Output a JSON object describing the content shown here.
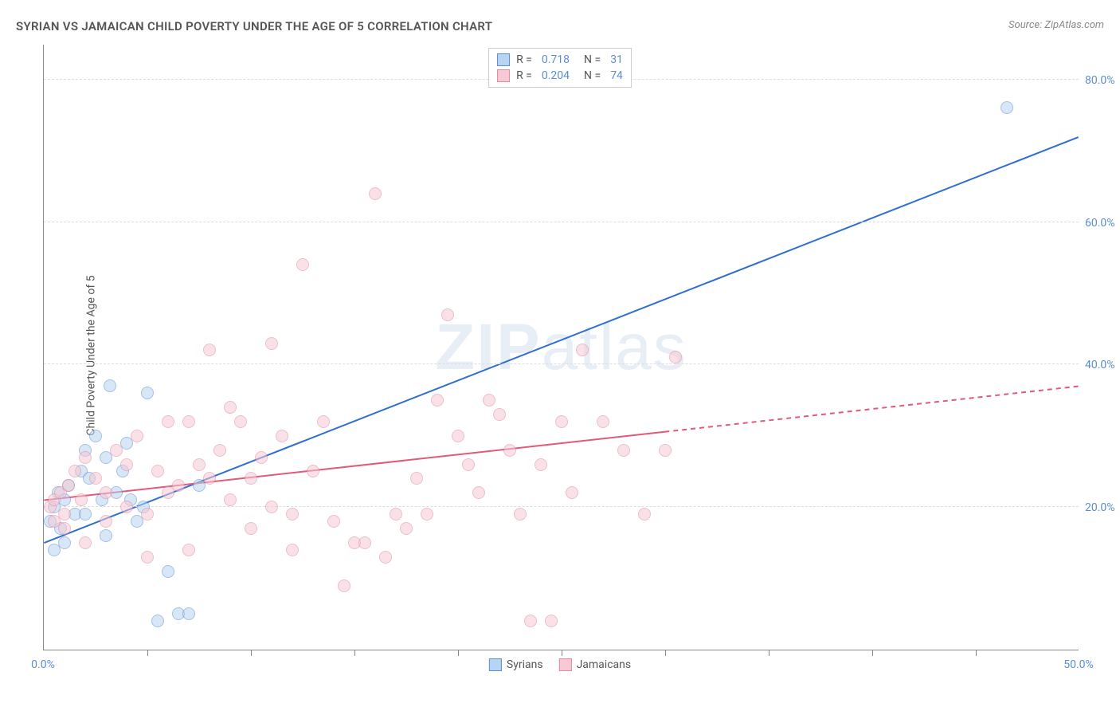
{
  "title": "SYRIAN VS JAMAICAN CHILD POVERTY UNDER THE AGE OF 5 CORRELATION CHART",
  "source": "Source: ZipAtlas.com",
  "ylabel": "Child Poverty Under the Age of 5",
  "watermark_part1": "ZIP",
  "watermark_part2": "atlas",
  "chart": {
    "type": "scatter",
    "xlim": [
      0,
      50
    ],
    "ylim": [
      0,
      85
    ],
    "xticks": [
      0,
      50
    ],
    "xtick_labels": [
      "0.0%",
      "50.0%"
    ],
    "xtick_marks": [
      5,
      10,
      15,
      20,
      25,
      30,
      35,
      40,
      45
    ],
    "yticks": [
      20,
      40,
      60,
      80
    ],
    "ytick_labels": [
      "20.0%",
      "40.0%",
      "60.0%",
      "80.0%"
    ],
    "background_color": "#ffffff",
    "grid_color": "#dddddd",
    "axis_color": "#888888",
    "tick_label_color": "#5b8dd6",
    "point_radius": 8,
    "point_opacity": 0.55,
    "series": [
      {
        "name": "Syrians",
        "color_fill": "#b8d4f0",
        "color_stroke": "#5b8dd6",
        "R": "0.718",
        "N": "31",
        "trend": {
          "x1": 0,
          "y1": 15,
          "x2": 50,
          "y2": 72,
          "solid_until": 50,
          "color": "#2e6fd1",
          "width": 2
        },
        "points": [
          [
            0.3,
            18
          ],
          [
            0.5,
            20
          ],
          [
            0.7,
            22
          ],
          [
            0.8,
            17
          ],
          [
            1.0,
            21
          ],
          [
            1.2,
            23
          ],
          [
            1.5,
            19
          ],
          [
            1.8,
            25
          ],
          [
            2.0,
            28
          ],
          [
            2.2,
            24
          ],
          [
            2.5,
            30
          ],
          [
            3.0,
            27
          ],
          [
            3.2,
            37
          ],
          [
            3.5,
            22
          ],
          [
            4.0,
            29
          ],
          [
            4.2,
            21
          ],
          [
            4.5,
            18
          ],
          [
            4.8,
            20
          ],
          [
            5.0,
            36
          ],
          [
            5.5,
            4
          ],
          [
            6.0,
            11
          ],
          [
            6.5,
            5
          ],
          [
            7.0,
            5
          ],
          [
            7.5,
            23
          ],
          [
            3.0,
            16
          ],
          [
            1.0,
            15
          ],
          [
            0.5,
            14
          ],
          [
            2.8,
            21
          ],
          [
            3.8,
            25
          ],
          [
            2.0,
            19
          ],
          [
            46.5,
            76
          ]
        ]
      },
      {
        "name": "Jamaicans",
        "color_fill": "#f6c9d4",
        "color_stroke": "#e08aa0",
        "R": "0.204",
        "N": "74",
        "trend": {
          "x1": 0,
          "y1": 21,
          "x2": 50,
          "y2": 37,
          "solid_until": 30,
          "color": "#e05a7a",
          "width": 2
        },
        "points": [
          [
            0.3,
            20
          ],
          [
            0.5,
            21
          ],
          [
            0.8,
            22
          ],
          [
            1.0,
            19
          ],
          [
            1.2,
            23
          ],
          [
            1.5,
            25
          ],
          [
            1.8,
            21
          ],
          [
            2.0,
            27
          ],
          [
            2.5,
            24
          ],
          [
            3.0,
            22
          ],
          [
            3.5,
            28
          ],
          [
            4.0,
            26
          ],
          [
            4.5,
            30
          ],
          [
            5.0,
            13
          ],
          [
            5.5,
            25
          ],
          [
            6.0,
            32
          ],
          [
            6.5,
            23
          ],
          [
            7.0,
            14
          ],
          [
            7.5,
            26
          ],
          [
            8.0,
            42
          ],
          [
            8.5,
            28
          ],
          [
            9.0,
            34
          ],
          [
            9.5,
            32
          ],
          [
            10.0,
            24
          ],
          [
            10.5,
            27
          ],
          [
            11.0,
            43
          ],
          [
            11.5,
            30
          ],
          [
            12.0,
            14
          ],
          [
            12.5,
            54
          ],
          [
            13.0,
            25
          ],
          [
            13.5,
            32
          ],
          [
            14.0,
            18
          ],
          [
            14.5,
            9
          ],
          [
            15.0,
            15
          ],
          [
            15.5,
            15
          ],
          [
            16.0,
            64
          ],
          [
            16.5,
            13
          ],
          [
            17.0,
            19
          ],
          [
            17.5,
            17
          ],
          [
            18.0,
            24
          ],
          [
            18.5,
            19
          ],
          [
            19.0,
            35
          ],
          [
            19.5,
            47
          ],
          [
            20.0,
            30
          ],
          [
            20.5,
            26
          ],
          [
            21.0,
            22
          ],
          [
            21.5,
            35
          ],
          [
            22.0,
            33
          ],
          [
            22.5,
            28
          ],
          [
            23.0,
            19
          ],
          [
            23.5,
            4
          ],
          [
            24.0,
            26
          ],
          [
            24.5,
            4
          ],
          [
            25.0,
            32
          ],
          [
            25.5,
            22
          ],
          [
            26.0,
            42
          ],
          [
            27.0,
            32
          ],
          [
            28.0,
            28
          ],
          [
            29.0,
            19
          ],
          [
            30.0,
            28
          ],
          [
            30.5,
            41
          ],
          [
            7.0,
            32
          ],
          [
            8.0,
            24
          ],
          [
            9.0,
            21
          ],
          [
            10.0,
            17
          ],
          [
            11.0,
            20
          ],
          [
            12.0,
            19
          ],
          [
            4.0,
            20
          ],
          [
            5.0,
            19
          ],
          [
            6.0,
            22
          ],
          [
            2.0,
            15
          ],
          [
            3.0,
            18
          ],
          [
            1.0,
            17
          ],
          [
            0.5,
            18
          ]
        ]
      }
    ],
    "legend_top_labels": {
      "R": "R =",
      "N": "N ="
    },
    "legend_bottom": [
      "Syrians",
      "Jamaicans"
    ]
  }
}
